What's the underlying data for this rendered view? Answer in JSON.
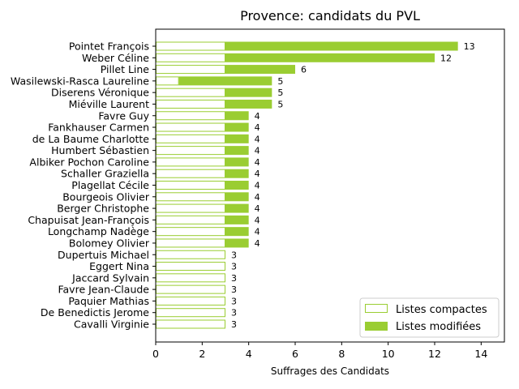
{
  "chart_data": {
    "type": "bar",
    "orientation": "horizontal",
    "stacked": true,
    "title": "Provence: candidats du PVL",
    "xlabel": "Suffrages des Candidats",
    "ylabel": "",
    "xlim": [
      0,
      15
    ],
    "xticks": [
      0,
      2,
      4,
      6,
      8,
      10,
      12,
      14
    ],
    "xtick_labels": [
      "0",
      "2",
      "4",
      "6",
      "8",
      "10",
      "12",
      "14"
    ],
    "grid": false,
    "legend_position": "lower-right",
    "categories": [
      "Pointet François",
      "Weber Céline",
      "Pillet Line",
      "Wasilewski-Rasca Laureline",
      "Diserens Véronique",
      "Miéville Laurent",
      "Favre Guy",
      "Fankhauser Carmen",
      "de La Baume Charlotte",
      "Humbert Sébastien",
      "Albiker Pochon Caroline",
      "Schaller Graziella",
      "Plagellat Cécile",
      "Bourgeois Olivier",
      "Berger Christophe",
      "Chapuisat Jean-François",
      "Longchamp Nadège",
      "Bolomey Olivier",
      "Dupertuis Michael",
      "Eggert Nina",
      "Jaccard Sylvain",
      "Favre Jean-Claude",
      "Paquier Mathias",
      "De Benedictis Jerome",
      "Cavalli Virginie"
    ],
    "series": [
      {
        "name": "Listes compactes",
        "color": "#9acd32",
        "style": "outline",
        "values": [
          3,
          3,
          3,
          1,
          3,
          3,
          3,
          3,
          3,
          3,
          3,
          3,
          3,
          3,
          3,
          3,
          3,
          3,
          3,
          3,
          3,
          3,
          3,
          3,
          3
        ]
      },
      {
        "name": "Listes modifiées",
        "color": "#9acd32",
        "style": "filled",
        "values": [
          10,
          9,
          3,
          4,
          2,
          2,
          1,
          1,
          1,
          1,
          1,
          1,
          1,
          1,
          1,
          1,
          1,
          1,
          0,
          0,
          0,
          0,
          0,
          0,
          0
        ]
      }
    ],
    "totals": [
      13,
      12,
      6,
      5,
      5,
      5,
      4,
      4,
      4,
      4,
      4,
      4,
      4,
      4,
      4,
      4,
      4,
      4,
      3,
      3,
      3,
      3,
      3,
      3,
      3
    ],
    "total_labels": [
      "13",
      "12",
      "6",
      "5",
      "5",
      "5",
      "4",
      "4",
      "4",
      "4",
      "4",
      "4",
      "4",
      "4",
      "4",
      "4",
      "4",
      "4",
      "3",
      "3",
      "3",
      "3",
      "3",
      "3",
      "3"
    ]
  }
}
